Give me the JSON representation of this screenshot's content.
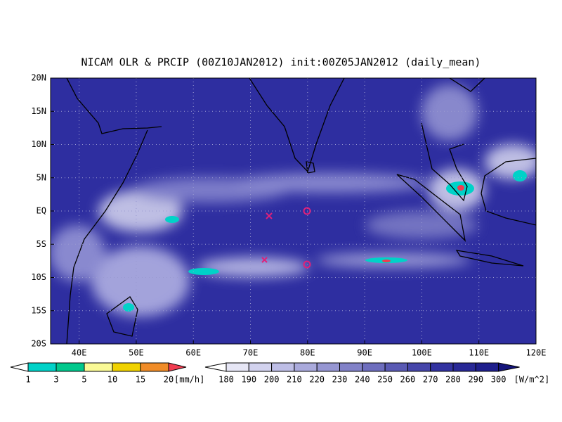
{
  "title": "NICAM OLR & PRCIP (00Z10JAN2012) init:00Z05JAN2012 (daily_mean)",
  "map": {
    "xlim": [
      35,
      120
    ],
    "ylim": [
      -20,
      20
    ],
    "xticks": [
      {
        "value": 40,
        "label": "40E"
      },
      {
        "value": 50,
        "label": "50E"
      },
      {
        "value": 60,
        "label": "60E"
      },
      {
        "value": 70,
        "label": "70E"
      },
      {
        "value": 80,
        "label": "80E"
      },
      {
        "value": 90,
        "label": "90E"
      },
      {
        "value": 100,
        "label": "100E"
      },
      {
        "value": 110,
        "label": "110E"
      },
      {
        "value": 120,
        "label": "120E"
      }
    ],
    "yticks": [
      {
        "value": 20,
        "label": "20N"
      },
      {
        "value": 15,
        "label": "15N"
      },
      {
        "value": 10,
        "label": "10N"
      },
      {
        "value": 5,
        "label": "5N"
      },
      {
        "value": 0,
        "label": "EQ"
      },
      {
        "value": -5,
        "label": "5S"
      },
      {
        "value": -10,
        "label": "10S"
      },
      {
        "value": -15,
        "label": "15S"
      },
      {
        "value": -20,
        "label": "20S"
      }
    ]
  },
  "precip_legend": {
    "levels": [
      1,
      3,
      5,
      10,
      15,
      20
    ],
    "unit": "[mm/h]",
    "colors": [
      "#ffffff",
      "#00d2c8",
      "#00c88c",
      "#fafa96",
      "#f0d200",
      "#f08c28",
      "#f03c50"
    ]
  },
  "olr_legend": {
    "levels": [
      180,
      190,
      200,
      210,
      220,
      230,
      240,
      250,
      260,
      270,
      280,
      290,
      300
    ],
    "unit": "[W/m^2]",
    "colors": [
      "#ffffff",
      "#e6e6f5",
      "#d2d2ee",
      "#bebee6",
      "#aaaadc",
      "#9696d2",
      "#8282c8",
      "#6e6ebe",
      "#5a5ab4",
      "#4646aa",
      "#3232a0",
      "#282896",
      "#1e1e8c",
      "#14147a"
    ]
  }
}
